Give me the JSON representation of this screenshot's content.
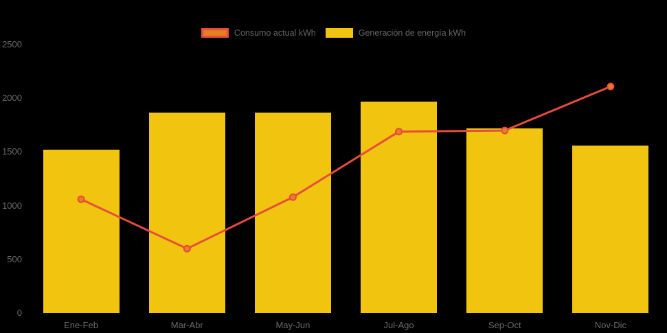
{
  "legend": {
    "items": [
      {
        "label": "Consumo actual kWh"
      },
      {
        "label": "Generación de energía kWh"
      }
    ]
  },
  "chart_data": {
    "type": "bar",
    "categories": [
      "Ene-Feb",
      "Mar-Abr",
      "May-Jun",
      "Jul-Ago",
      "Sep-Oct",
      "Nov-Dic"
    ],
    "series": [
      {
        "name": "Consumo actual kWh",
        "type": "line",
        "values": [
          1060,
          600,
          1080,
          1690,
          1700,
          2110
        ]
      },
      {
        "name": "Generación de energía kWh",
        "type": "bar",
        "values": [
          1520,
          1870,
          1870,
          1970,
          1720,
          1560
        ]
      }
    ],
    "title": "",
    "xlabel": "",
    "ylabel": "",
    "ylim": [
      0,
      2500
    ],
    "yticks": [
      0,
      500,
      1000,
      1500,
      2000,
      2500
    ],
    "grid": false,
    "legend_position": "top"
  },
  "colors": {
    "bar": "#F1C40F",
    "line": "#E74C3C",
    "point_fill": "#E67E22",
    "axis_text": "#6A6A6A",
    "background": "#000000"
  }
}
